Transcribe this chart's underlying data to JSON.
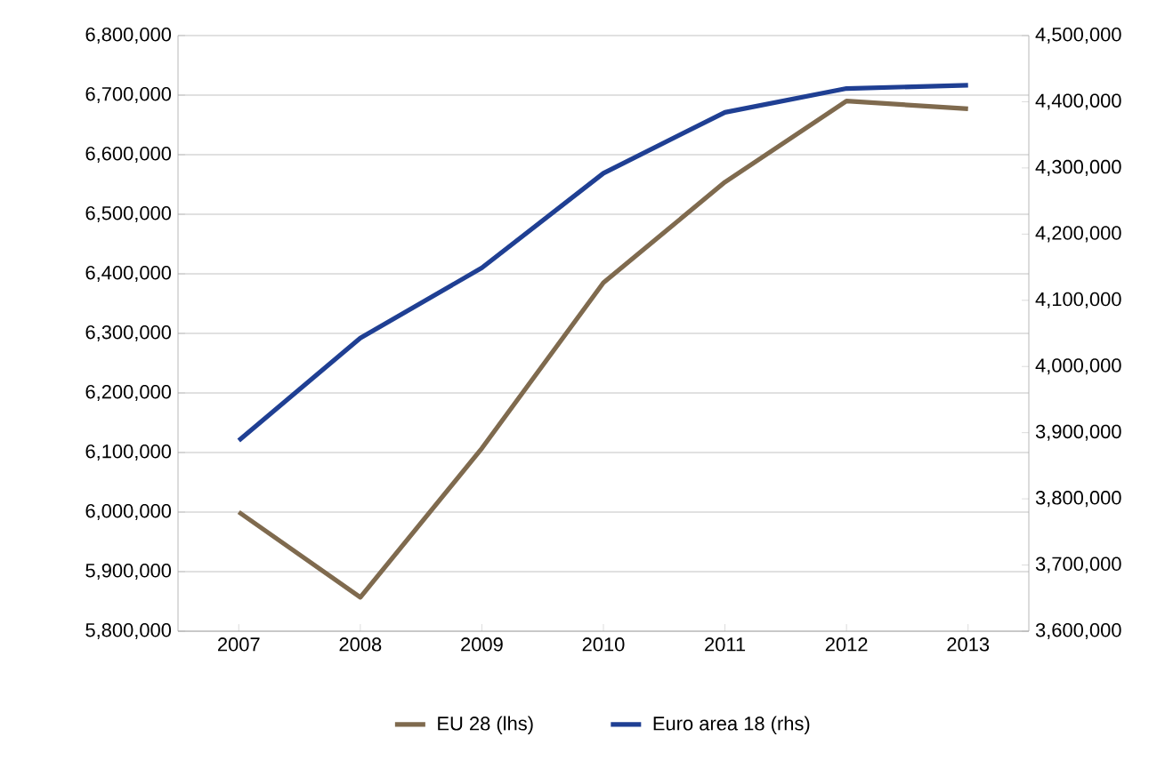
{
  "chart_data": {
    "type": "line",
    "categories": [
      "2007",
      "2008",
      "2009",
      "2010",
      "2011",
      "2012",
      "2013"
    ],
    "series": [
      {
        "name": "EU 28 (lhs)",
        "color": "#7f6a4e",
        "values": [
          6000000,
          5857000,
          6107000,
          6385000,
          6554000,
          6690000,
          6677000
        ]
      },
      {
        "name": "Euro area 18 (rhs)",
        "color": "#1f3f93",
        "axis": "y2",
        "values": [
          3888000,
          4043000,
          4149000,
          4292000,
          4384000,
          4420000,
          4425000
        ]
      }
    ],
    "ylim": [
      5800000,
      6800000
    ],
    "yticks": [
      {
        "value": 5800000,
        "label": "5,800,000"
      },
      {
        "value": 5900000,
        "label": "5,900,000"
      },
      {
        "value": 6000000,
        "label": "6,000,000"
      },
      {
        "value": 6100000,
        "label": "6,100,000"
      },
      {
        "value": 6200000,
        "label": "6,200,000"
      },
      {
        "value": 6300000,
        "label": "6,300,000"
      },
      {
        "value": 6400000,
        "label": "6,400,000"
      },
      {
        "value": 6500000,
        "label": "6,500,000"
      },
      {
        "value": 6600000,
        "label": "6,600,000"
      },
      {
        "value": 6700000,
        "label": "6,700,000"
      },
      {
        "value": 6800000,
        "label": "6,800,000"
      }
    ],
    "y2lim": [
      3600000,
      4500000
    ],
    "y2ticks": [
      {
        "value": 3600000,
        "label": "3,600,000"
      },
      {
        "value": 3700000,
        "label": "3,700,000"
      },
      {
        "value": 3800000,
        "label": "3,800,000"
      },
      {
        "value": 3900000,
        "label": "3,900,000"
      },
      {
        "value": 4000000,
        "label": "4,000,000"
      },
      {
        "value": 4100000,
        "label": "4,100,000"
      },
      {
        "value": 4200000,
        "label": "4,200,000"
      },
      {
        "value": 4300000,
        "label": "4,300,000"
      },
      {
        "value": 4400000,
        "label": "4,400,000"
      },
      {
        "value": 4500000,
        "label": "4,500,000"
      }
    ],
    "grid": "y",
    "legend": "bottom",
    "marker": "none",
    "line_style": "solid"
  }
}
